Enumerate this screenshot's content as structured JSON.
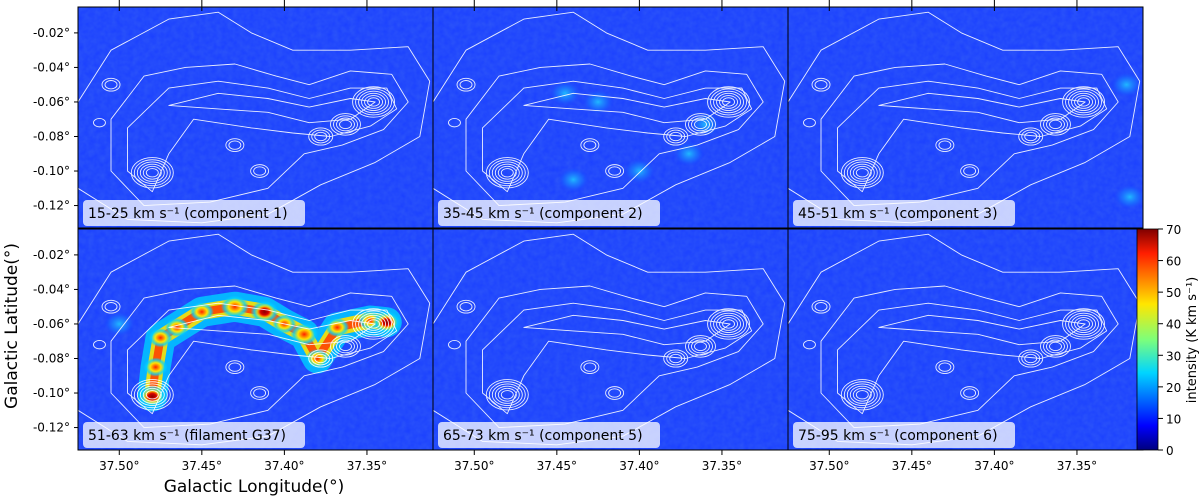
{
  "chart_data": {
    "type": "heatmap",
    "xlabel": "Galactic Longitude(°)",
    "ylabel": "Galactic Latitude(°)",
    "xlim": [
      37.525,
      37.31
    ],
    "ylim": [
      -0.133,
      -0.005
    ],
    "x_ticks": [
      37.5,
      37.45,
      37.4,
      37.35
    ],
    "x_tick_labels": [
      "37.50°",
      "37.45°",
      "37.40°",
      "37.35°"
    ],
    "y_ticks": [
      -0.02,
      -0.04,
      -0.06,
      -0.08,
      -0.1,
      -0.12
    ],
    "y_tick_labels": [
      "-0.02°",
      "-0.04°",
      "-0.06°",
      "-0.08°",
      "-0.10°",
      "-0.12°"
    ],
    "colorbar": {
      "label": "intensity (K km s⁻¹)",
      "range": [
        0,
        70
      ],
      "ticks": [
        0,
        10,
        20,
        30,
        40,
        50,
        60,
        70
      ],
      "tick_labels": [
        "0",
        "10",
        "20",
        "30",
        "40",
        "50",
        "60",
        "70"
      ],
      "colormap": "jet"
    },
    "panels": [
      {
        "label": "15-25 km s⁻¹ (component 1)",
        "peak_intensity": 8,
        "emission": []
      },
      {
        "label": "35-45 km s⁻¹  (component 2)",
        "peak_intensity": 30,
        "emission": [
          {
            "l": 37.445,
            "b": -0.055,
            "intensity": 22
          },
          {
            "l": 37.425,
            "b": -0.06,
            "intensity": 18
          },
          {
            "l": 37.36,
            "b": -0.073,
            "intensity": 30
          },
          {
            "l": 37.37,
            "b": -0.09,
            "intensity": 20
          },
          {
            "l": 37.4,
            "b": -0.1,
            "intensity": 18
          },
          {
            "l": 37.44,
            "b": -0.105,
            "intensity": 16
          }
        ]
      },
      {
        "label": "45-51 km s⁻¹  (component 3)",
        "peak_intensity": 20,
        "emission": [
          {
            "l": 37.318,
            "b": -0.115,
            "intensity": 20
          },
          {
            "l": 37.32,
            "b": -0.05,
            "intensity": 12
          }
        ]
      },
      {
        "label": "51-63 km s⁻¹ (filament G37)",
        "peak_intensity": 70,
        "emission": [
          {
            "l": 37.48,
            "b": -0.102,
            "intensity": 70
          },
          {
            "l": 37.478,
            "b": -0.085,
            "intensity": 45
          },
          {
            "l": 37.475,
            "b": -0.068,
            "intensity": 50
          },
          {
            "l": 37.465,
            "b": -0.062,
            "intensity": 55
          },
          {
            "l": 37.45,
            "b": -0.053,
            "intensity": 50
          },
          {
            "l": 37.43,
            "b": -0.05,
            "intensity": 60
          },
          {
            "l": 37.412,
            "b": -0.053,
            "intensity": 65
          },
          {
            "l": 37.4,
            "b": -0.06,
            "intensity": 58
          },
          {
            "l": 37.388,
            "b": -0.066,
            "intensity": 62
          },
          {
            "l": 37.38,
            "b": -0.08,
            "intensity": 55
          },
          {
            "l": 37.368,
            "b": -0.062,
            "intensity": 50
          },
          {
            "l": 37.348,
            "b": -0.058,
            "intensity": 55
          },
          {
            "l": 37.338,
            "b": -0.059,
            "intensity": 70
          },
          {
            "l": 37.5,
            "b": -0.06,
            "intensity": 22
          }
        ]
      },
      {
        "label": "65-73 km s⁻¹  (component 5)",
        "peak_intensity": 8,
        "emission": []
      },
      {
        "label": "75-95 km s⁻¹  (component 6)",
        "peak_intensity": 10,
        "emission": []
      }
    ],
    "contours": {
      "color": "#ffffff",
      "peaks": [
        {
          "l": 37.48,
          "b": -0.101
        },
        {
          "l": 37.346,
          "b": -0.06
        },
        {
          "l": 37.363,
          "b": -0.073
        }
      ]
    }
  }
}
